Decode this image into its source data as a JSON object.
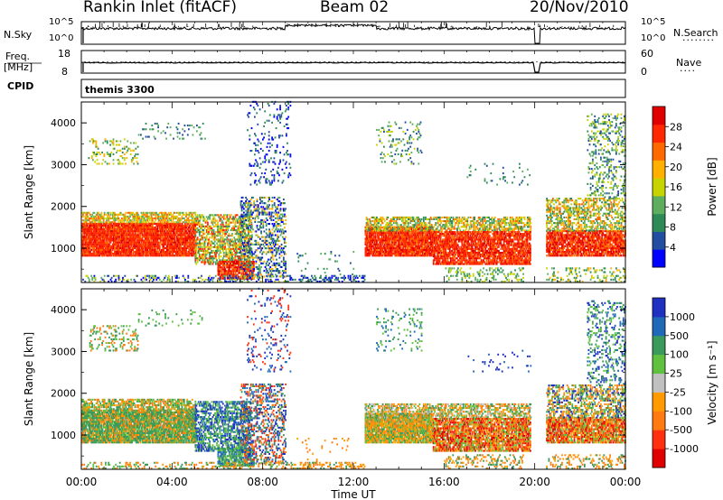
{
  "header": {
    "title": "Rankin Inlet (fitACF)",
    "beam": "Beam 02",
    "date": "20/Nov/2010"
  },
  "panels": {
    "nsky_label": "N.Sky",
    "nsky_ticks": [
      "10^5",
      "10^0"
    ],
    "nsearch_label": "N.Search",
    "nsearch_ticks": [
      "10^5",
      "10^0"
    ],
    "freq_label": "Freq.",
    "freq_unit": "[MHz]",
    "freq_ticks": [
      "18",
      "8"
    ],
    "nave_label": "Nave",
    "nave_ticks": [
      "60",
      "0"
    ],
    "cpid_label": "CPID",
    "cpid_value": "themis 3300"
  },
  "colors": {
    "power_scale": [
      "#0000ff",
      "#224da0",
      "#2e8b57",
      "#5fae5f",
      "#c8d400",
      "#ffb000",
      "#ff6a00",
      "#ff2800",
      "#e00000"
    ],
    "velocity_scale": [
      "#2030c0",
      "#1e6ab8",
      "#3a9a5a",
      "#60c040",
      "#c0c0c0",
      "#ff9a00",
      "#ff7a10",
      "#ff3010",
      "#e00000"
    ]
  },
  "chart_data": [
    {
      "type": "heatmap",
      "name": "power",
      "ylabel": "Slant Range [km]",
      "yticks": [
        "4000",
        "3000",
        "2000",
        "1000"
      ],
      "xticks": [
        "00:00",
        "04:00",
        "08:00",
        "12:00",
        "16:00",
        "20:00",
        "00:00"
      ],
      "colorbar_label": "Power [dB]",
      "colorbar_ticks": [
        "28",
        "24",
        "20",
        "16",
        "12",
        "8",
        "4"
      ],
      "ylim": [
        180,
        4500
      ],
      "xlim": [
        0,
        24
      ]
    },
    {
      "type": "heatmap",
      "name": "velocity",
      "ylabel": "Slant Range [km]",
      "yticks": [
        "4000",
        "3000",
        "2000",
        "1000"
      ],
      "xticks": [
        "00:00",
        "04:00",
        "08:00",
        "12:00",
        "16:00",
        "20:00",
        "00:00"
      ],
      "xlabel": "Time UT",
      "colorbar_label": "Velocity [m s⁻¹]",
      "colorbar_ticks": [
        "1000",
        "500",
        "100",
        "25",
        "-25",
        "-100",
        "-500",
        "-1000"
      ],
      "ylim": [
        180,
        4500
      ],
      "xlim": [
        0,
        24
      ]
    }
  ]
}
